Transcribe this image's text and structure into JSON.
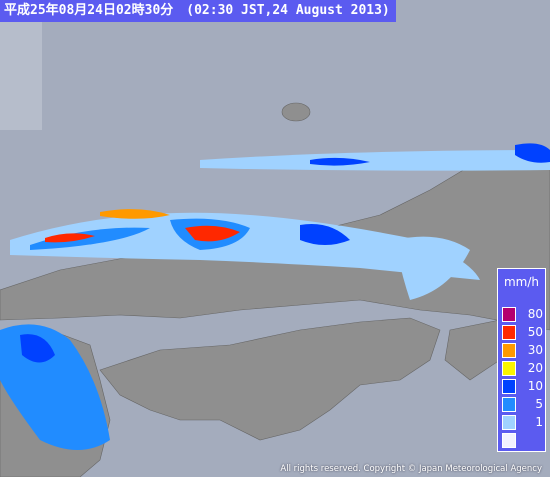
{
  "header": {
    "title": "平成25年08月24日02時30分　(02:30 JST,24 August 2013)"
  },
  "legend": {
    "title": "mm/h",
    "items": [
      {
        "label": "80",
        "color": "#b4006e"
      },
      {
        "label": "50",
        "color": "#ff2800"
      },
      {
        "label": "30",
        "color": "#ff9900"
      },
      {
        "label": "20",
        "color": "#faf500"
      },
      {
        "label": "10",
        "color": "#0041ff"
      },
      {
        "label": "5",
        "color": "#218cff"
      },
      {
        "label": "1",
        "color": "#a0d2ff"
      },
      {
        "label": "",
        "color": "#f2f2ff"
      }
    ]
  },
  "footer": {
    "copyright": "All rights reserved. Copyright © Japan Meteorological Agency"
  }
}
